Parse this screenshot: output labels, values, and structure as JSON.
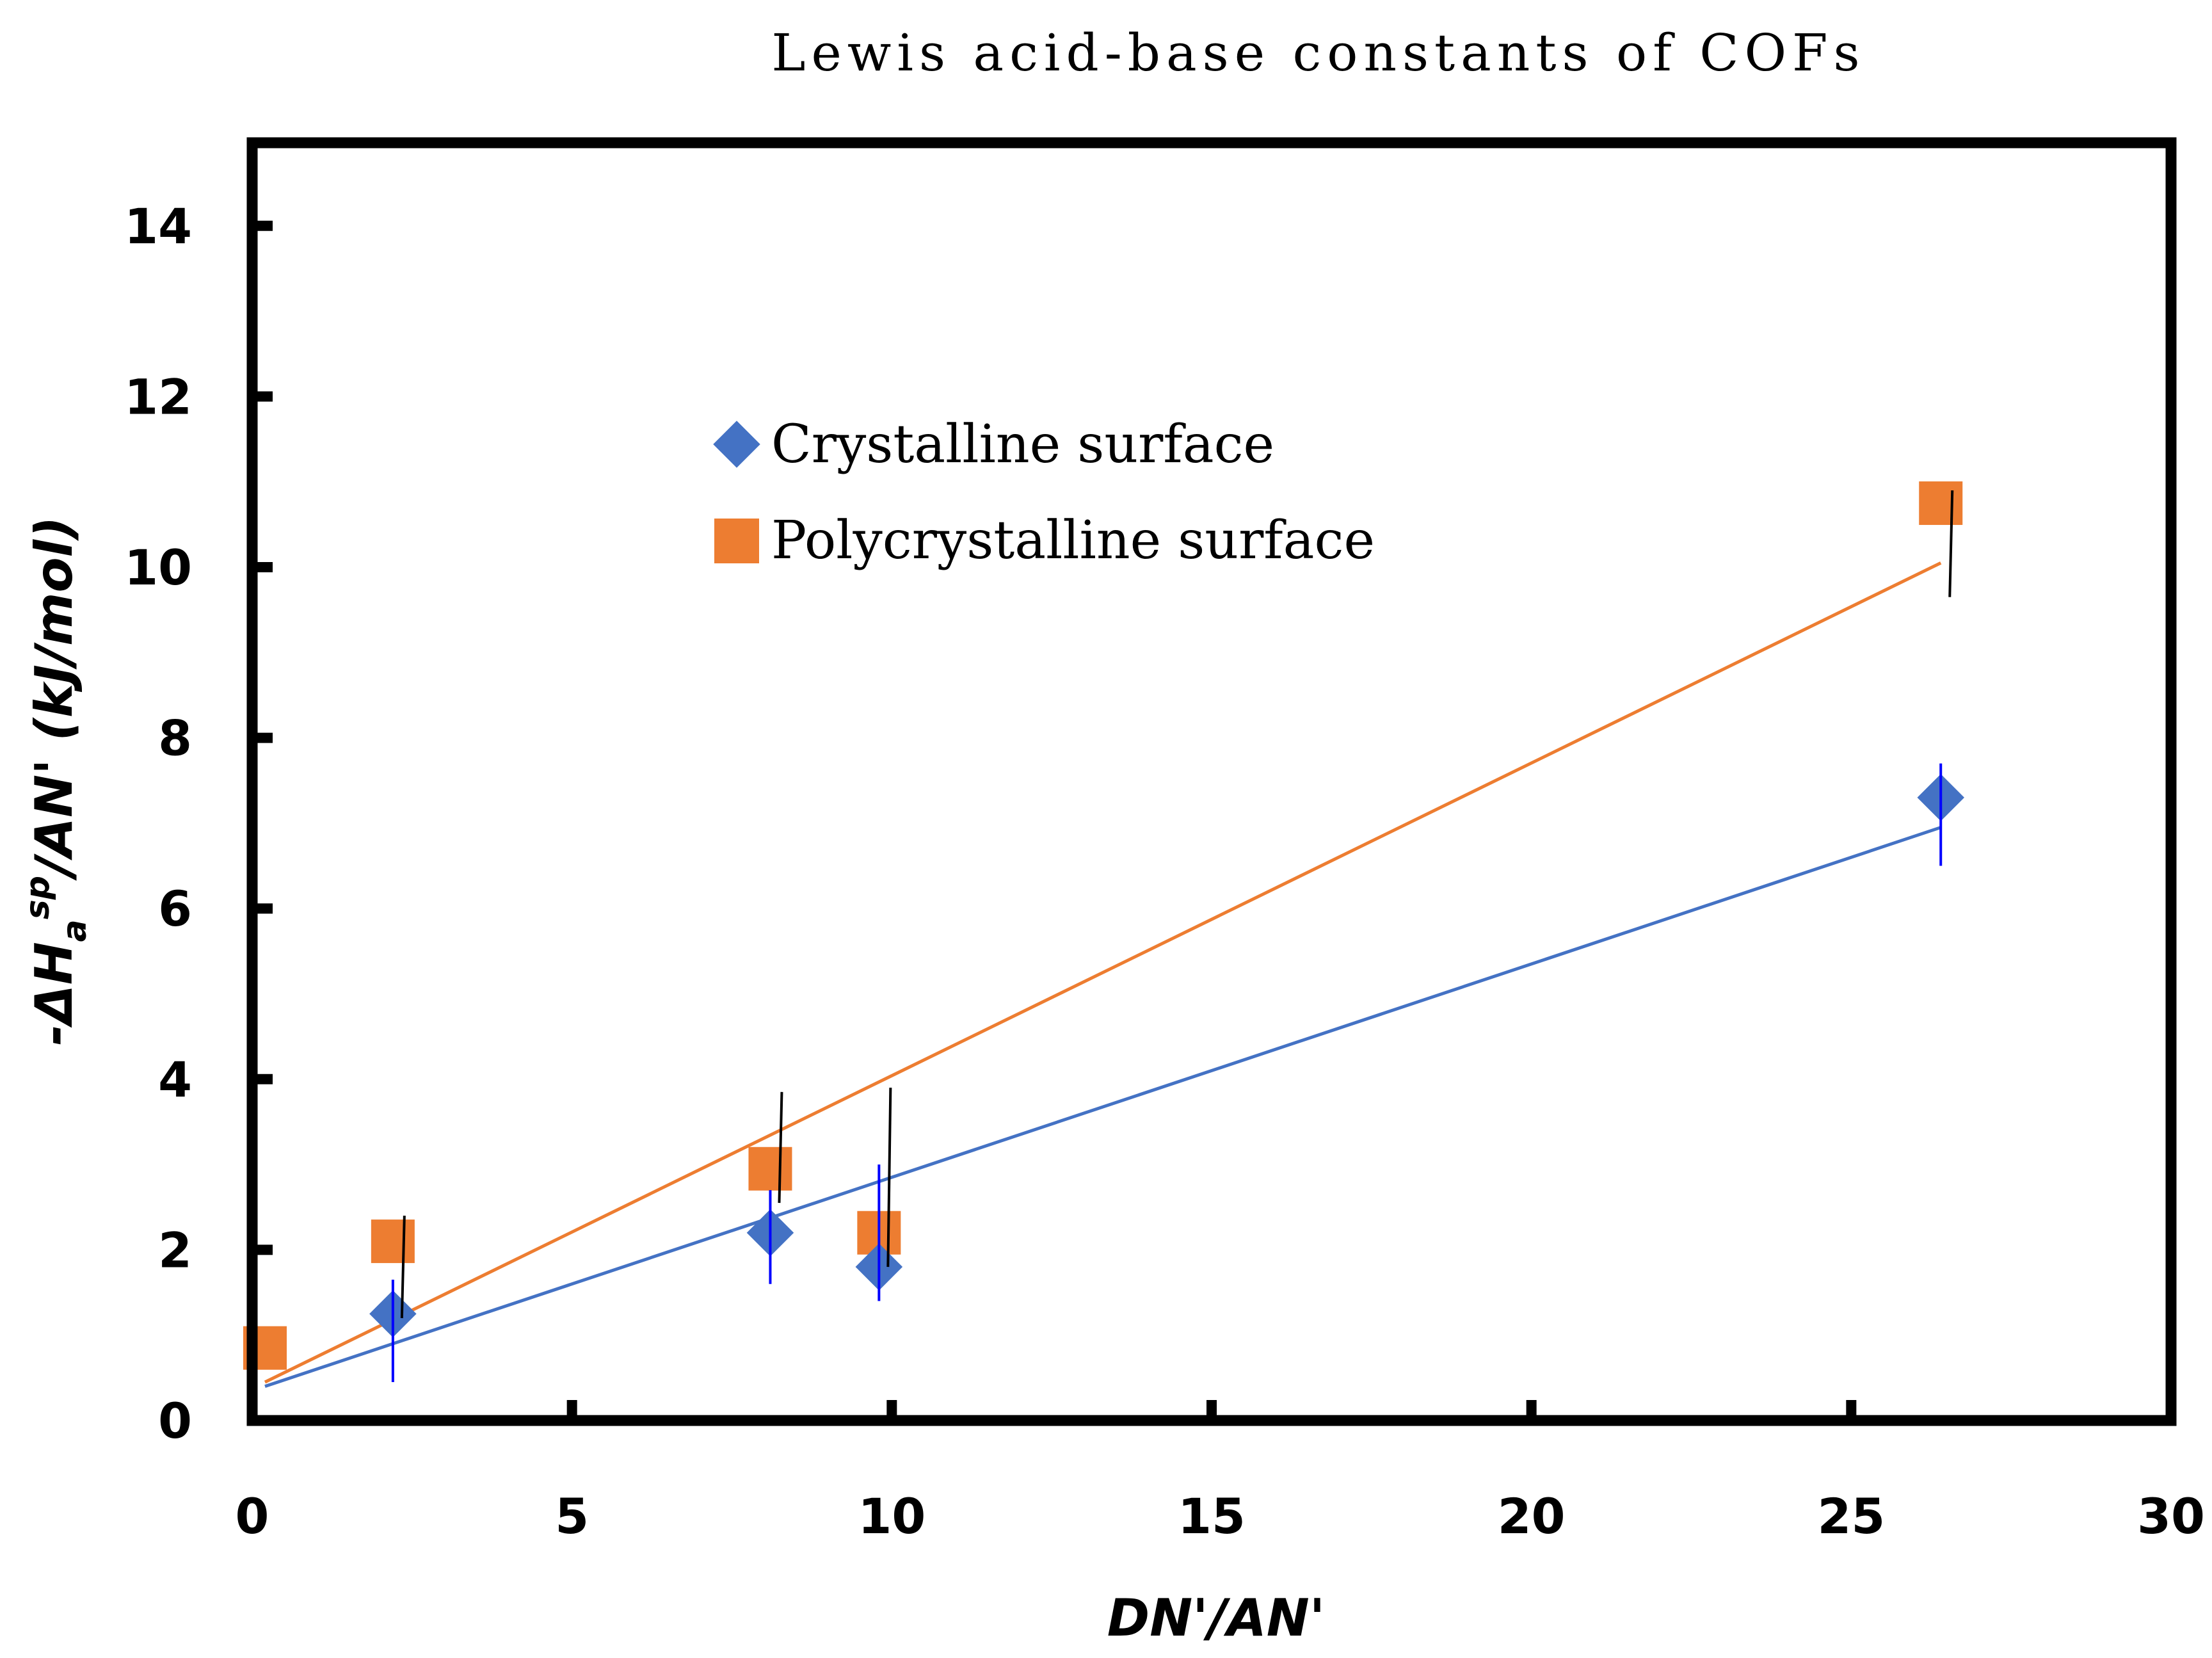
{
  "chart_data": {
    "type": "scatter",
    "title": "Lewis acid-base constants of COFs",
    "xlabel": "DN'/AN'",
    "ylabel": {
      "prefix": "-ΔH",
      "subscript": "a",
      "superscript": "sp",
      "suffix": "/AN' (kJ/mol)"
    },
    "xlim": [
      0,
      30
    ],
    "ylim": [
      0,
      15
    ],
    "xticks": [
      0,
      5,
      10,
      15,
      20,
      25,
      30
    ],
    "yticks": [
      0,
      2,
      4,
      6,
      8,
      10,
      12,
      14
    ],
    "grid": false,
    "legend_position": "upper-middle",
    "series": [
      {
        "name": "Crystalline surface",
        "marker": "diamond",
        "color": "#4472C4",
        "errorbar_color": "#0000FF",
        "x": [
          2.2,
          8.1,
          9.8,
          26.4
        ],
        "y": [
          1.25,
          2.2,
          1.8,
          7.3
        ],
        "error_low": [
          0.8,
          0.6,
          0.4,
          0.8
        ],
        "error_high": [
          0.4,
          0.5,
          1.2,
          0.4
        ],
        "fit": {
          "x": [
            0.2,
            26.4
          ],
          "y": [
            0.4,
            6.95
          ]
        }
      },
      {
        "name": "Polycrystalline surface",
        "marker": "square",
        "color": "#ED7D31",
        "errorbar_color": "#000000",
        "x": [
          0.2,
          2.2,
          8.1,
          9.8,
          26.4
        ],
        "y": [
          0.85,
          2.1,
          2.95,
          2.2,
          10.75
        ],
        "error_low": [
          0,
          0.9,
          0.4,
          0.4,
          1.1
        ],
        "error_high": [
          0,
          0.3,
          0.9,
          1.7,
          0.15
        ],
        "fit": {
          "x": [
            0.2,
            26.4
          ],
          "y": [
            0.45,
            10.05
          ]
        }
      }
    ]
  }
}
